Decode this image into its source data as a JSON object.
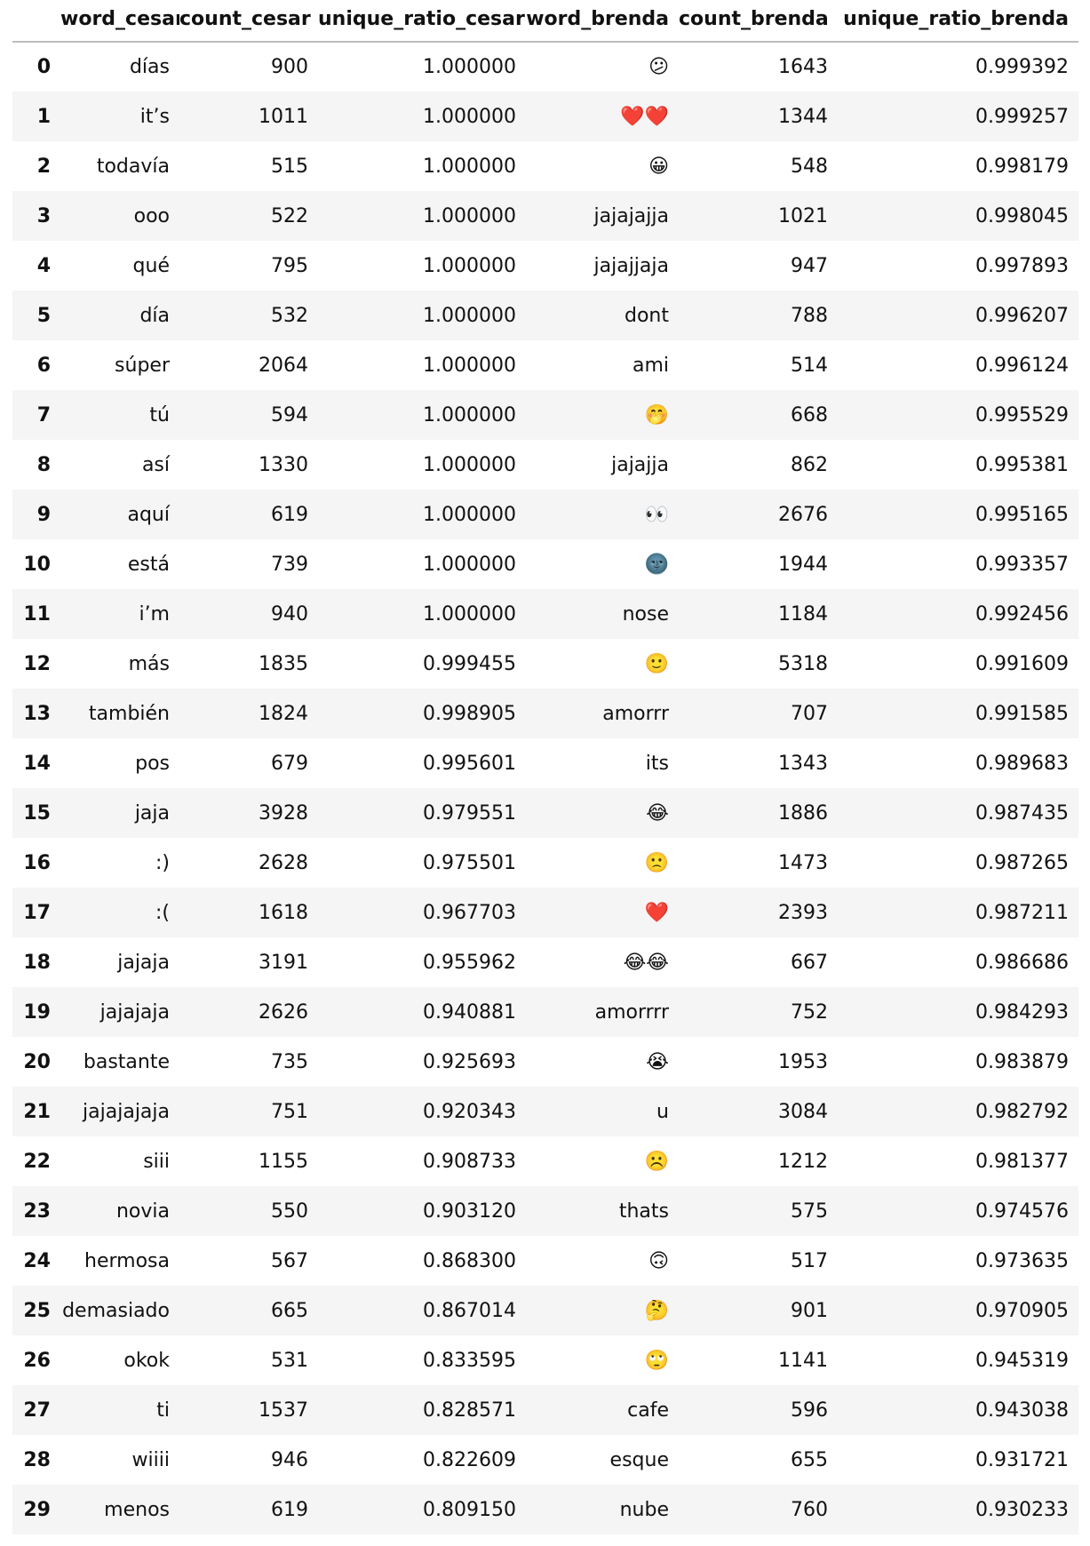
{
  "chart_data": {
    "type": "table",
    "columns": [
      "",
      "word_cesar",
      "count_cesar",
      "unique_ratio_cesar",
      "word_brenda",
      "count_brenda",
      "unique_ratio_brenda"
    ],
    "rows": [
      [
        "0",
        "días",
        "900",
        "1.000000",
        "😕",
        "1643",
        "0.999392"
      ],
      [
        "1",
        "it’s",
        "1011",
        "1.000000",
        "❤️❤️",
        "1344",
        "0.999257"
      ],
      [
        "2",
        "todavía",
        "515",
        "1.000000",
        "😀",
        "548",
        "0.998179"
      ],
      [
        "3",
        "ooo",
        "522",
        "1.000000",
        "jajajajja",
        "1021",
        "0.998045"
      ],
      [
        "4",
        "qué",
        "795",
        "1.000000",
        "jajajjaja",
        "947",
        "0.997893"
      ],
      [
        "5",
        "día",
        "532",
        "1.000000",
        "dont",
        "788",
        "0.996207"
      ],
      [
        "6",
        "súper",
        "2064",
        "1.000000",
        "ami",
        "514",
        "0.996124"
      ],
      [
        "7",
        "tú",
        "594",
        "1.000000",
        "🤭",
        "668",
        "0.995529"
      ],
      [
        "8",
        "así",
        "1330",
        "1.000000",
        "jajajja",
        "862",
        "0.995381"
      ],
      [
        "9",
        "aquí",
        "619",
        "1.000000",
        "👀",
        "2676",
        "0.995165"
      ],
      [
        "10",
        "está",
        "739",
        "1.000000",
        "🌚",
        "1944",
        "0.993357"
      ],
      [
        "11",
        "i’m",
        "940",
        "1.000000",
        "nose",
        "1184",
        "0.992456"
      ],
      [
        "12",
        "más",
        "1835",
        "0.999455",
        "🙂",
        "5318",
        "0.991609"
      ],
      [
        "13",
        "también",
        "1824",
        "0.998905",
        "amorrr",
        "707",
        "0.991585"
      ],
      [
        "14",
        "pos",
        "679",
        "0.995601",
        "its",
        "1343",
        "0.989683"
      ],
      [
        "15",
        "jaja",
        "3928",
        "0.979551",
        "😂",
        "1886",
        "0.987435"
      ],
      [
        "16",
        ":)",
        "2628",
        "0.975501",
        "🙁",
        "1473",
        "0.987265"
      ],
      [
        "17",
        ":(",
        "1618",
        "0.967703",
        "❤️",
        "2393",
        "0.987211"
      ],
      [
        "18",
        "jajaja",
        "3191",
        "0.955962",
        "😂😂",
        "667",
        "0.986686"
      ],
      [
        "19",
        "jajajaja",
        "2626",
        "0.940881",
        "amorrrr",
        "752",
        "0.984293"
      ],
      [
        "20",
        "bastante",
        "735",
        "0.925693",
        "😭",
        "1953",
        "0.983879"
      ],
      [
        "21",
        "jajajajaja",
        "751",
        "0.920343",
        "u",
        "3084",
        "0.982792"
      ],
      [
        "22",
        "siii",
        "1155",
        "0.908733",
        "☹️",
        "1212",
        "0.981377"
      ],
      [
        "23",
        "novia",
        "550",
        "0.903120",
        "thats",
        "575",
        "0.974576"
      ],
      [
        "24",
        "hermosa",
        "567",
        "0.868300",
        "🙃",
        "517",
        "0.973635"
      ],
      [
        "25",
        "demasiado",
        "665",
        "0.867014",
        "🤔",
        "901",
        "0.970905"
      ],
      [
        "26",
        "okok",
        "531",
        "0.833595",
        "🙄",
        "1141",
        "0.945319"
      ],
      [
        "27",
        "ti",
        "1537",
        "0.828571",
        "cafe",
        "596",
        "0.943038"
      ],
      [
        "28",
        "wiiii",
        "946",
        "0.822609",
        "esque",
        "655",
        "0.931721"
      ],
      [
        "29",
        "menos",
        "619",
        "0.809150",
        "nube",
        "760",
        "0.930233"
      ]
    ]
  }
}
